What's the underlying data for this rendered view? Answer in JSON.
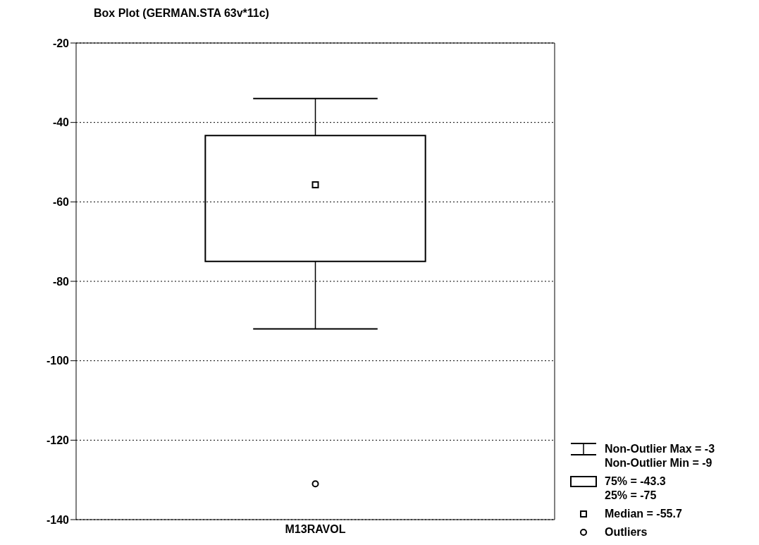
{
  "chart_data": {
    "type": "box",
    "title": "Box Plot (GERMAN.STA 63v*11c)",
    "categories": [
      "M13RAVOL"
    ],
    "boxes": [
      {
        "low": -92,
        "q1": -75,
        "median": -55.7,
        "q3": -43.3,
        "high": -34,
        "outliers": [
          -131
        ]
      }
    ],
    "ylim": [
      -140,
      -20
    ],
    "yticks": [
      -140,
      -120,
      -100,
      -80,
      -60,
      -40,
      -20
    ],
    "grid": "y",
    "annotations": [
      "Non-Outlier Max = -3",
      "Non-Outlier Min = -9",
      "75% = -43.3",
      "25% = -75",
      "Median = -55.7",
      "Outliers"
    ]
  }
}
